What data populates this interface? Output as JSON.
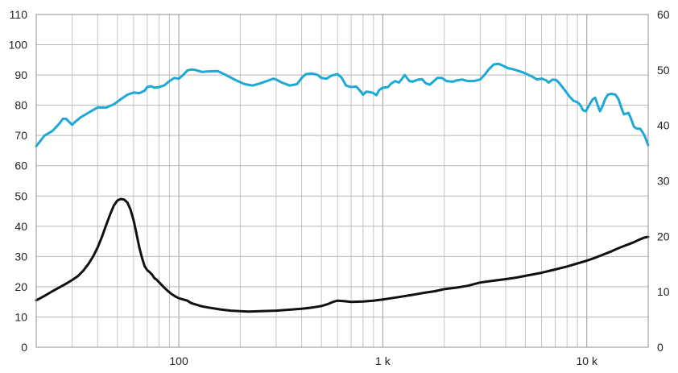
{
  "chart_data": {
    "type": "line",
    "title": "",
    "xlabel": "",
    "ylabel": "",
    "x_scale": "log",
    "xlim": [
      20,
      20000
    ],
    "ylim_left": [
      0,
      110
    ],
    "ylim_right": [
      0,
      60
    ],
    "grid": true,
    "x_tick_labels": [
      {
        "x": 100,
        "label": "100"
      },
      {
        "x": 1000,
        "label": "1 k"
      },
      {
        "x": 10000,
        "label": "10 k"
      }
    ],
    "y_left_ticks": [
      "0",
      "10",
      "20",
      "30",
      "40",
      "50",
      "60",
      "70",
      "80",
      "90",
      "100",
      "110"
    ],
    "y_right_ticks": [
      "0",
      "10",
      "20",
      "30",
      "40",
      "50",
      "60"
    ],
    "series": [
      {
        "axis": "left",
        "color": "#1ea8d6",
        "points": [
          [
            20,
            66.5
          ],
          [
            22,
            70
          ],
          [
            24,
            71.5
          ],
          [
            26,
            74
          ],
          [
            27,
            75.5
          ],
          [
            28,
            75.5
          ],
          [
            29,
            74.5
          ],
          [
            30,
            73.5
          ],
          [
            31,
            74.5
          ],
          [
            33,
            76
          ],
          [
            36,
            77.5
          ],
          [
            40,
            79.3
          ],
          [
            44,
            79.2
          ],
          [
            48,
            80.3
          ],
          [
            52,
            82
          ],
          [
            56,
            83.5
          ],
          [
            60,
            84.2
          ],
          [
            64,
            84
          ],
          [
            68,
            84.8
          ],
          [
            70,
            86
          ],
          [
            73,
            86.3
          ],
          [
            76,
            85.8
          ],
          [
            80,
            86
          ],
          [
            85,
            86.6
          ],
          [
            90,
            88
          ],
          [
            95,
            89
          ],
          [
            100,
            88.8
          ],
          [
            105,
            90
          ],
          [
            110,
            91.5
          ],
          [
            115,
            91.8
          ],
          [
            120,
            91.7
          ],
          [
            130,
            91
          ],
          [
            140,
            91.2
          ],
          [
            155,
            91.3
          ],
          [
            170,
            90
          ],
          [
            190,
            88.3
          ],
          [
            210,
            87
          ],
          [
            230,
            86.5
          ],
          [
            250,
            87.2
          ],
          [
            270,
            88
          ],
          [
            290,
            88.8
          ],
          [
            300,
            88.5
          ],
          [
            320,
            87.5
          ],
          [
            350,
            86.5
          ],
          [
            380,
            87
          ],
          [
            400,
            89
          ],
          [
            420,
            90.3
          ],
          [
            450,
            90.5
          ],
          [
            480,
            90
          ],
          [
            500,
            89
          ],
          [
            530,
            88.8
          ],
          [
            560,
            89.8
          ],
          [
            600,
            90.3
          ],
          [
            630,
            89
          ],
          [
            660,
            86.5
          ],
          [
            700,
            86
          ],
          [
            740,
            86.2
          ],
          [
            780,
            84.5
          ],
          [
            800,
            83.5
          ],
          [
            830,
            84.5
          ],
          [
            870,
            84.3
          ],
          [
            900,
            84
          ],
          [
            930,
            83.3
          ],
          [
            960,
            85
          ],
          [
            1000,
            85.8
          ],
          [
            1060,
            86
          ],
          [
            1100,
            87.2
          ],
          [
            1150,
            88
          ],
          [
            1200,
            87.5
          ],
          [
            1250,
            89
          ],
          [
            1280,
            90
          ],
          [
            1320,
            88.8
          ],
          [
            1350,
            88
          ],
          [
            1400,
            87.8
          ],
          [
            1450,
            88.2
          ],
          [
            1500,
            88.5
          ],
          [
            1560,
            88.6
          ],
          [
            1620,
            87.3
          ],
          [
            1700,
            86.8
          ],
          [
            1780,
            88
          ],
          [
            1850,
            89
          ],
          [
            1950,
            89
          ],
          [
            2050,
            88
          ],
          [
            2200,
            87.8
          ],
          [
            2300,
            88.2
          ],
          [
            2450,
            88.5
          ],
          [
            2600,
            88
          ],
          [
            2800,
            88
          ],
          [
            3000,
            88.5
          ],
          [
            3150,
            90
          ],
          [
            3300,
            91.8
          ],
          [
            3500,
            93.5
          ],
          [
            3700,
            93.7
          ],
          [
            3900,
            93
          ],
          [
            4100,
            92.3
          ],
          [
            4400,
            91.8
          ],
          [
            4800,
            91
          ],
          [
            5100,
            90.2
          ],
          [
            5400,
            89.5
          ],
          [
            5700,
            88.5
          ],
          [
            6000,
            88.8
          ],
          [
            6300,
            88.3
          ],
          [
            6500,
            87.5
          ],
          [
            6800,
            88.5
          ],
          [
            7100,
            88.3
          ],
          [
            7400,
            87
          ],
          [
            7800,
            85
          ],
          [
            8200,
            83
          ],
          [
            8600,
            81.5
          ],
          [
            9000,
            81
          ],
          [
            9300,
            80
          ],
          [
            9600,
            78.3
          ],
          [
            9900,
            78
          ],
          [
            10300,
            80.2
          ],
          [
            10700,
            82
          ],
          [
            11000,
            82.5
          ],
          [
            11300,
            80
          ],
          [
            11600,
            78
          ],
          [
            11900,
            79.5
          ],
          [
            12300,
            82
          ],
          [
            12700,
            83.5
          ],
          [
            13200,
            83.8
          ],
          [
            13800,
            83.5
          ],
          [
            14300,
            82
          ],
          [
            14800,
            79
          ],
          [
            15200,
            77
          ],
          [
            15600,
            77.2
          ],
          [
            16000,
            77.5
          ],
          [
            16500,
            75.5
          ],
          [
            17000,
            73
          ],
          [
            17500,
            72.3
          ],
          [
            18300,
            72.2
          ],
          [
            19000,
            70.5
          ],
          [
            19500,
            68.8
          ],
          [
            20000,
            66.8
          ]
        ]
      },
      {
        "axis": "left",
        "color": "#111111",
        "points": [
          [
            20,
            15.5
          ],
          [
            22,
            17
          ],
          [
            24,
            18.5
          ],
          [
            26,
            19.8
          ],
          [
            28,
            21
          ],
          [
            30,
            22.2
          ],
          [
            32,
            23.5
          ],
          [
            34,
            25.3
          ],
          [
            36,
            27.5
          ],
          [
            38,
            30
          ],
          [
            40,
            33
          ],
          [
            42,
            36.5
          ],
          [
            44,
            40.3
          ],
          [
            46,
            43.8
          ],
          [
            48,
            46.8
          ],
          [
            50,
            48.5
          ],
          [
            52,
            49
          ],
          [
            54,
            48.8
          ],
          [
            56,
            47.8
          ],
          [
            58,
            45.5
          ],
          [
            60,
            42
          ],
          [
            62,
            37.5
          ],
          [
            64,
            33
          ],
          [
            66,
            29.5
          ],
          [
            68,
            26.8
          ],
          [
            70,
            25.5
          ],
          [
            72,
            24.8
          ],
          [
            74,
            24
          ],
          [
            76,
            22.8
          ],
          [
            78,
            22.3
          ],
          [
            80,
            21.5
          ],
          [
            84,
            20
          ],
          [
            88,
            18.7
          ],
          [
            92,
            17.6
          ],
          [
            96,
            16.8
          ],
          [
            100,
            16.2
          ],
          [
            105,
            15.8
          ],
          [
            110,
            15.4
          ],
          [
            115,
            14.6
          ],
          [
            120,
            14.2
          ],
          [
            130,
            13.5
          ],
          [
            140,
            13.1
          ],
          [
            160,
            12.5
          ],
          [
            180,
            12.1
          ],
          [
            200,
            11.9
          ],
          [
            220,
            11.8
          ],
          [
            250,
            11.9
          ],
          [
            300,
            12.1
          ],
          [
            350,
            12.4
          ],
          [
            400,
            12.7
          ],
          [
            450,
            13.1
          ],
          [
            500,
            13.6
          ],
          [
            540,
            14.3
          ],
          [
            570,
            15
          ],
          [
            600,
            15.4
          ],
          [
            650,
            15.2
          ],
          [
            700,
            15
          ],
          [
            800,
            15.1
          ],
          [
            900,
            15.4
          ],
          [
            1000,
            15.8
          ],
          [
            1200,
            16.6
          ],
          [
            1400,
            17.3
          ],
          [
            1600,
            18
          ],
          [
            1800,
            18.5
          ],
          [
            2000,
            19.2
          ],
          [
            2300,
            19.7
          ],
          [
            2600,
            20.3
          ],
          [
            3000,
            21.4
          ],
          [
            3500,
            22
          ],
          [
            4000,
            22.5
          ],
          [
            4500,
            23
          ],
          [
            5000,
            23.6
          ],
          [
            6000,
            24.6
          ],
          [
            7000,
            25.7
          ],
          [
            8000,
            26.7
          ],
          [
            9000,
            27.7
          ],
          [
            10000,
            28.6
          ],
          [
            11000,
            29.6
          ],
          [
            12000,
            30.6
          ],
          [
            13000,
            31.5
          ],
          [
            14000,
            32.5
          ],
          [
            15000,
            33.3
          ],
          [
            16000,
            34
          ],
          [
            17000,
            34.7
          ],
          [
            18000,
            35.5
          ],
          [
            19000,
            36.2
          ],
          [
            20000,
            36.5
          ]
        ]
      }
    ]
  }
}
